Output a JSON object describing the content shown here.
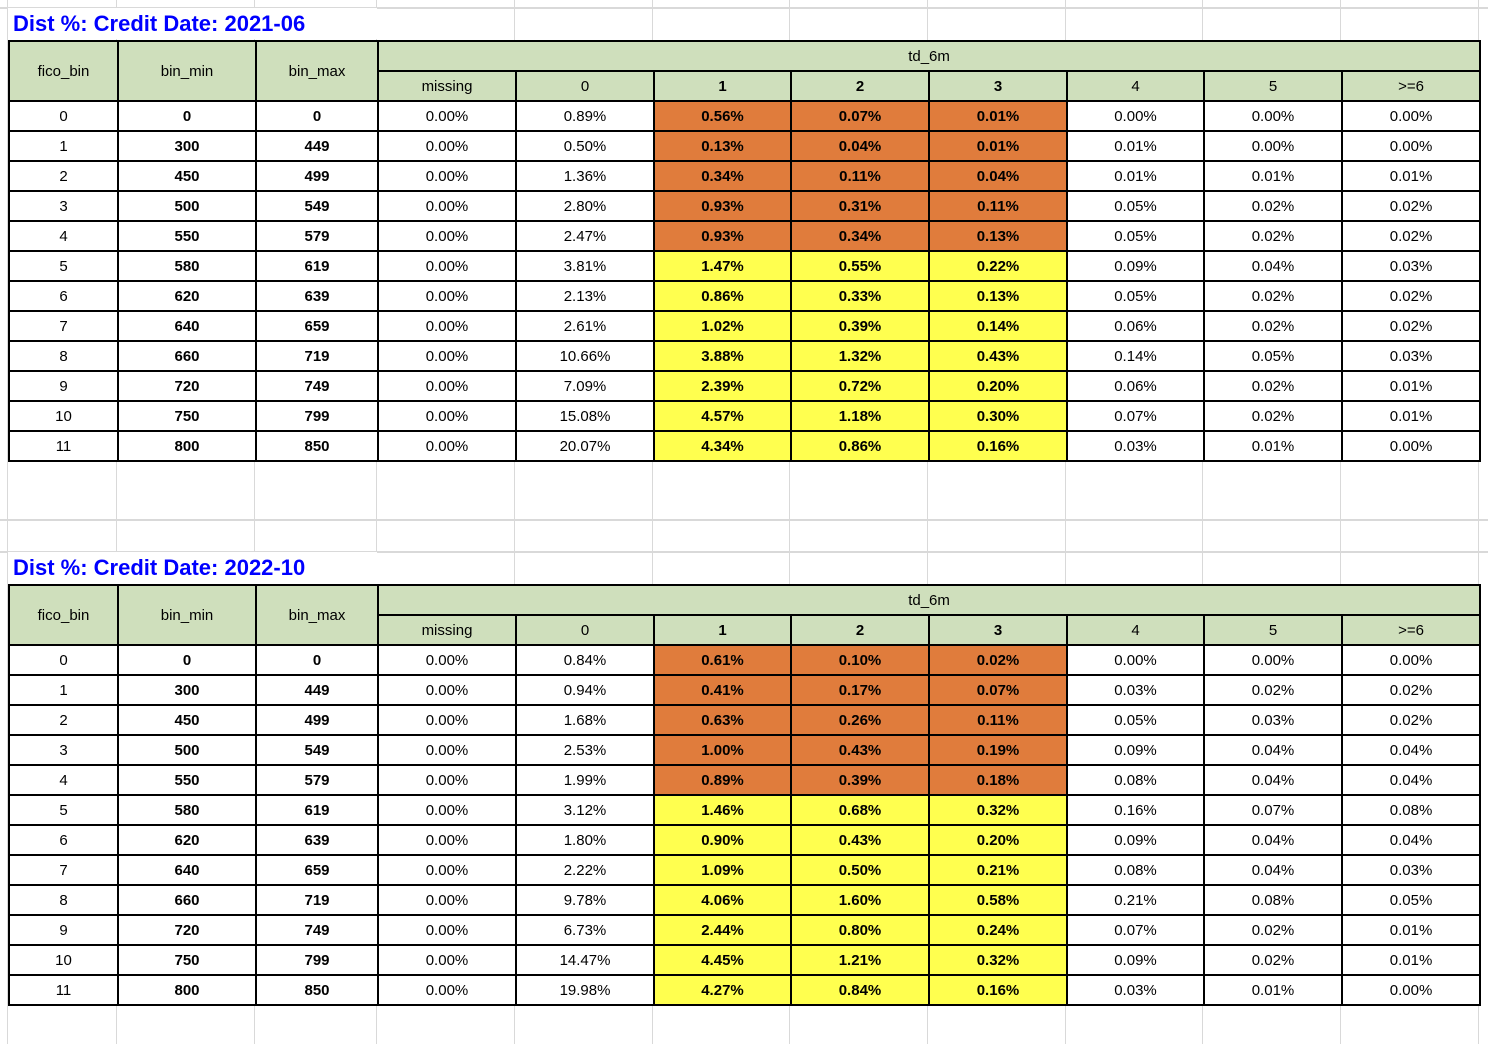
{
  "colors": {
    "header_green": "#cfdfbc",
    "orange": "#e07c3c",
    "yellow": "#ffff4f",
    "title_blue": "#0000ff",
    "grid_gray": "#d9d9d9"
  },
  "tables": [
    {
      "title": "Dist %: Credit Date: 2021-06",
      "group_header": "td_6m",
      "left_headers": [
        "fico_bin",
        "bin_min",
        "bin_max"
      ],
      "sub_headers": [
        "missing",
        "0",
        "1",
        "2",
        "3",
        "4",
        "5",
        ">=6"
      ],
      "rows": [
        {
          "fico_bin": "0",
          "bin_min": "0",
          "bin_max": "0",
          "band": "orange",
          "td_6m": [
            "0.00%",
            "0.89%",
            "0.56%",
            "0.07%",
            "0.01%",
            "0.00%",
            "0.00%",
            "0.00%"
          ]
        },
        {
          "fico_bin": "1",
          "bin_min": "300",
          "bin_max": "449",
          "band": "orange",
          "td_6m": [
            "0.00%",
            "0.50%",
            "0.13%",
            "0.04%",
            "0.01%",
            "0.01%",
            "0.00%",
            "0.00%"
          ]
        },
        {
          "fico_bin": "2",
          "bin_min": "450",
          "bin_max": "499",
          "band": "orange",
          "td_6m": [
            "0.00%",
            "1.36%",
            "0.34%",
            "0.11%",
            "0.04%",
            "0.01%",
            "0.01%",
            "0.01%"
          ]
        },
        {
          "fico_bin": "3",
          "bin_min": "500",
          "bin_max": "549",
          "band": "orange",
          "td_6m": [
            "0.00%",
            "2.80%",
            "0.93%",
            "0.31%",
            "0.11%",
            "0.05%",
            "0.02%",
            "0.02%"
          ]
        },
        {
          "fico_bin": "4",
          "bin_min": "550",
          "bin_max": "579",
          "band": "orange",
          "td_6m": [
            "0.00%",
            "2.47%",
            "0.93%",
            "0.34%",
            "0.13%",
            "0.05%",
            "0.02%",
            "0.02%"
          ]
        },
        {
          "fico_bin": "5",
          "bin_min": "580",
          "bin_max": "619",
          "band": "yellow",
          "td_6m": [
            "0.00%",
            "3.81%",
            "1.47%",
            "0.55%",
            "0.22%",
            "0.09%",
            "0.04%",
            "0.03%"
          ]
        },
        {
          "fico_bin": "6",
          "bin_min": "620",
          "bin_max": "639",
          "band": "yellow",
          "td_6m": [
            "0.00%",
            "2.13%",
            "0.86%",
            "0.33%",
            "0.13%",
            "0.05%",
            "0.02%",
            "0.02%"
          ]
        },
        {
          "fico_bin": "7",
          "bin_min": "640",
          "bin_max": "659",
          "band": "yellow",
          "td_6m": [
            "0.00%",
            "2.61%",
            "1.02%",
            "0.39%",
            "0.14%",
            "0.06%",
            "0.02%",
            "0.02%"
          ]
        },
        {
          "fico_bin": "8",
          "bin_min": "660",
          "bin_max": "719",
          "band": "yellow",
          "td_6m": [
            "0.00%",
            "10.66%",
            "3.88%",
            "1.32%",
            "0.43%",
            "0.14%",
            "0.05%",
            "0.03%"
          ]
        },
        {
          "fico_bin": "9",
          "bin_min": "720",
          "bin_max": "749",
          "band": "yellow",
          "td_6m": [
            "0.00%",
            "7.09%",
            "2.39%",
            "0.72%",
            "0.20%",
            "0.06%",
            "0.02%",
            "0.01%"
          ]
        },
        {
          "fico_bin": "10",
          "bin_min": "750",
          "bin_max": "799",
          "band": "yellow",
          "td_6m": [
            "0.00%",
            "15.08%",
            "4.57%",
            "1.18%",
            "0.30%",
            "0.07%",
            "0.02%",
            "0.01%"
          ]
        },
        {
          "fico_bin": "11",
          "bin_min": "800",
          "bin_max": "850",
          "band": "yellow",
          "td_6m": [
            "0.00%",
            "20.07%",
            "4.34%",
            "0.86%",
            "0.16%",
            "0.03%",
            "0.01%",
            "0.00%"
          ]
        }
      ]
    },
    {
      "title": "Dist %: Credit Date: 2022-10",
      "group_header": "td_6m",
      "left_headers": [
        "fico_bin",
        "bin_min",
        "bin_max"
      ],
      "sub_headers": [
        "missing",
        "0",
        "1",
        "2",
        "3",
        "4",
        "5",
        ">=6"
      ],
      "rows": [
        {
          "fico_bin": "0",
          "bin_min": "0",
          "bin_max": "0",
          "band": "orange",
          "td_6m": [
            "0.00%",
            "0.84%",
            "0.61%",
            "0.10%",
            "0.02%",
            "0.00%",
            "0.00%",
            "0.00%"
          ]
        },
        {
          "fico_bin": "1",
          "bin_min": "300",
          "bin_max": "449",
          "band": "orange",
          "td_6m": [
            "0.00%",
            "0.94%",
            "0.41%",
            "0.17%",
            "0.07%",
            "0.03%",
            "0.02%",
            "0.02%"
          ]
        },
        {
          "fico_bin": "2",
          "bin_min": "450",
          "bin_max": "499",
          "band": "orange",
          "td_6m": [
            "0.00%",
            "1.68%",
            "0.63%",
            "0.26%",
            "0.11%",
            "0.05%",
            "0.03%",
            "0.02%"
          ]
        },
        {
          "fico_bin": "3",
          "bin_min": "500",
          "bin_max": "549",
          "band": "orange",
          "td_6m": [
            "0.00%",
            "2.53%",
            "1.00%",
            "0.43%",
            "0.19%",
            "0.09%",
            "0.04%",
            "0.04%"
          ]
        },
        {
          "fico_bin": "4",
          "bin_min": "550",
          "bin_max": "579",
          "band": "orange",
          "td_6m": [
            "0.00%",
            "1.99%",
            "0.89%",
            "0.39%",
            "0.18%",
            "0.08%",
            "0.04%",
            "0.04%"
          ]
        },
        {
          "fico_bin": "5",
          "bin_min": "580",
          "bin_max": "619",
          "band": "yellow",
          "td_6m": [
            "0.00%",
            "3.12%",
            "1.46%",
            "0.68%",
            "0.32%",
            "0.16%",
            "0.07%",
            "0.08%"
          ]
        },
        {
          "fico_bin": "6",
          "bin_min": "620",
          "bin_max": "639",
          "band": "yellow",
          "td_6m": [
            "0.00%",
            "1.80%",
            "0.90%",
            "0.43%",
            "0.20%",
            "0.09%",
            "0.04%",
            "0.04%"
          ]
        },
        {
          "fico_bin": "7",
          "bin_min": "640",
          "bin_max": "659",
          "band": "yellow",
          "td_6m": [
            "0.00%",
            "2.22%",
            "1.09%",
            "0.50%",
            "0.21%",
            "0.08%",
            "0.04%",
            "0.03%"
          ]
        },
        {
          "fico_bin": "8",
          "bin_min": "660",
          "bin_max": "719",
          "band": "yellow",
          "td_6m": [
            "0.00%",
            "9.78%",
            "4.06%",
            "1.60%",
            "0.58%",
            "0.21%",
            "0.08%",
            "0.05%"
          ]
        },
        {
          "fico_bin": "9",
          "bin_min": "720",
          "bin_max": "749",
          "band": "yellow",
          "td_6m": [
            "0.00%",
            "6.73%",
            "2.44%",
            "0.80%",
            "0.24%",
            "0.07%",
            "0.02%",
            "0.01%"
          ]
        },
        {
          "fico_bin": "10",
          "bin_min": "750",
          "bin_max": "799",
          "band": "yellow",
          "td_6m": [
            "0.00%",
            "14.47%",
            "4.45%",
            "1.21%",
            "0.32%",
            "0.09%",
            "0.02%",
            "0.01%"
          ]
        },
        {
          "fico_bin": "11",
          "bin_min": "800",
          "bin_max": "850",
          "band": "yellow",
          "td_6m": [
            "0.00%",
            "19.98%",
            "4.27%",
            "0.84%",
            "0.16%",
            "0.03%",
            "0.01%",
            "0.00%"
          ]
        }
      ]
    }
  ]
}
